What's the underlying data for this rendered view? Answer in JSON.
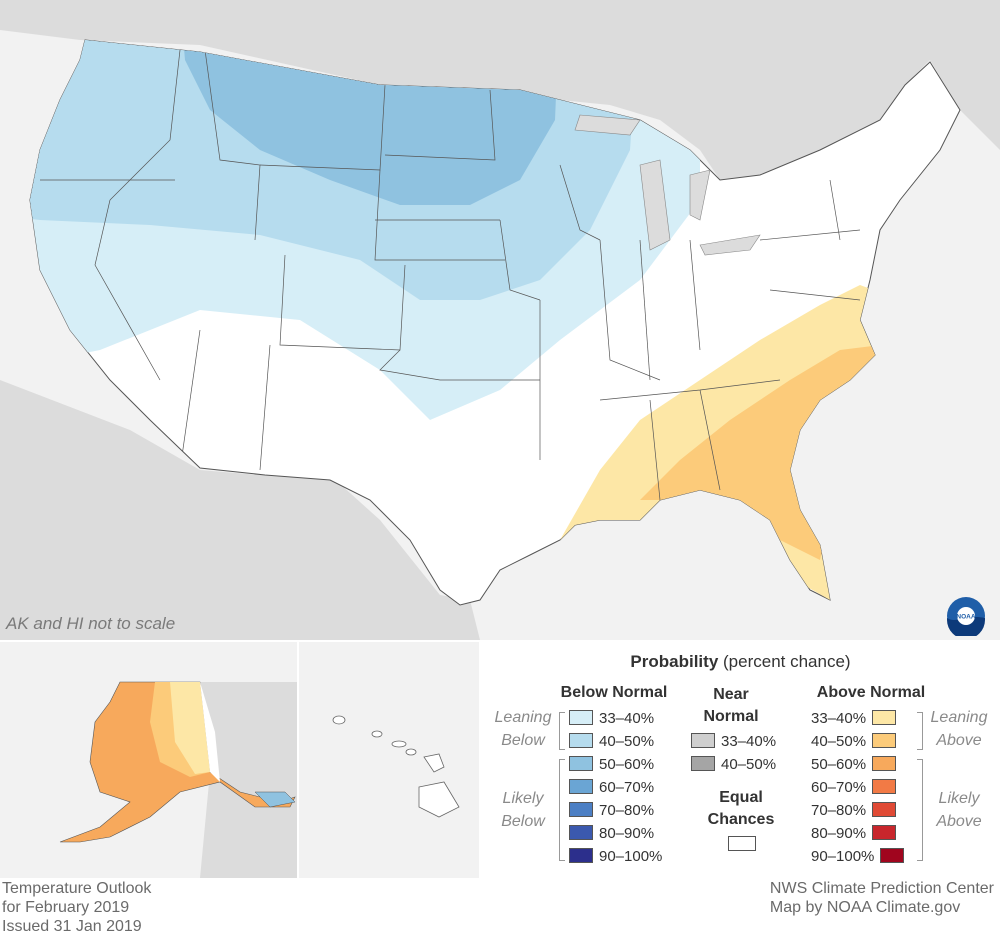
{
  "map": {
    "note": "AK and HI not to scale",
    "footer": {
      "left_lines": [
        "Temperature Outlook",
        "for February 2019",
        "Issued 31 Jan 2019"
      ],
      "right_lines": [
        "NWS Climate Prediction Center",
        "Map by NOAA Climate.gov"
      ]
    },
    "logo_text": "NOAA"
  },
  "legend": {
    "title_bold": "Probability",
    "title_rest": " (percent chance)",
    "below": {
      "heading": "Below Normal",
      "leaning_label": [
        "Leaning",
        "Below"
      ],
      "likely_label": [
        "Likely",
        "Below"
      ],
      "items": [
        {
          "label": "33–40%",
          "color": "#d6eef7"
        },
        {
          "label": "40–50%",
          "color": "#b6dcee"
        },
        {
          "label": "50–60%",
          "color": "#8fc2e0"
        },
        {
          "label": "60–70%",
          "color": "#6aa5d4"
        },
        {
          "label": "70–80%",
          "color": "#4c7fc4"
        },
        {
          "label": "80–90%",
          "color": "#3b59ae"
        },
        {
          "label": "90–100%",
          "color": "#2c2f8c"
        }
      ]
    },
    "near": {
      "heading": [
        "Near",
        "Normal"
      ],
      "items": [
        {
          "label": "33–40%",
          "color": "#cfcfcf"
        },
        {
          "label": "40–50%",
          "color": "#a5a5a5"
        }
      ],
      "equal_heading": [
        "Equal",
        "Chances"
      ],
      "equal_color": "#ffffff"
    },
    "above": {
      "heading": "Above Normal",
      "leaning_label": [
        "Leaning",
        "Above"
      ],
      "likely_label": [
        "Likely",
        "Above"
      ],
      "items": [
        {
          "label": "33–40%",
          "color": "#fde7a6"
        },
        {
          "label": "40–50%",
          "color": "#fccb7a"
        },
        {
          "label": "50–60%",
          "color": "#f7a95c"
        },
        {
          "label": "60–70%",
          "color": "#f27a45"
        },
        {
          "label": "70–80%",
          "color": "#e04a35"
        },
        {
          "label": "80–90%",
          "color": "#c8262c"
        },
        {
          "label": "90–100%",
          "color": "#a0051e"
        }
      ]
    }
  }
}
